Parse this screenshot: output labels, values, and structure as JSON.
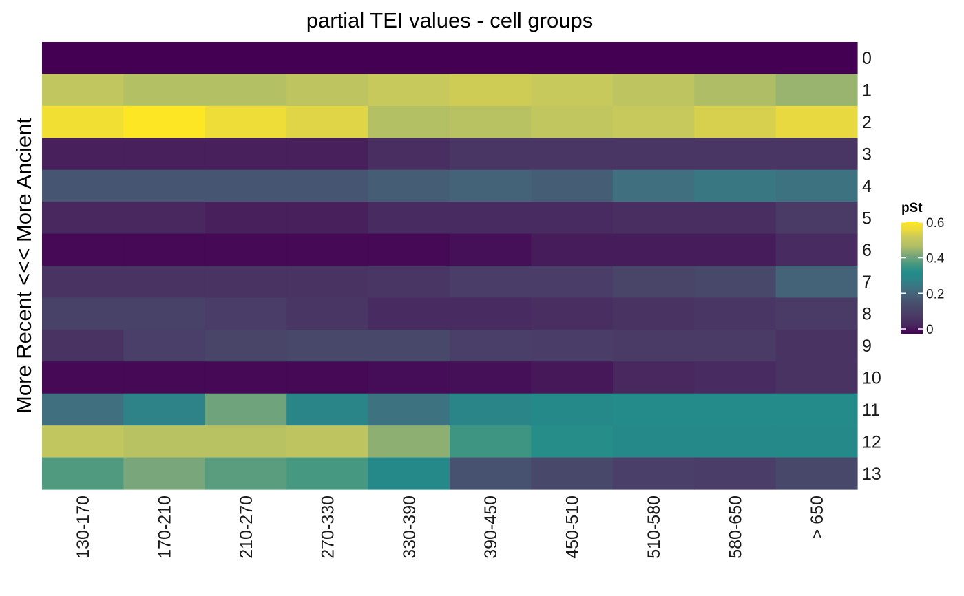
{
  "chart_data": {
    "type": "heatmap",
    "title": "partial TEI values - cell groups",
    "xlabel": "",
    "ylabel": "More Recent <<< More Ancient",
    "x_categories": [
      "130-170",
      "170-210",
      "210-270",
      "270-330",
      "330-390",
      "390-450",
      "450-510",
      "510-580",
      "580-650",
      "> 650"
    ],
    "y_categories": [
      "0",
      "1",
      "2",
      "3",
      "4",
      "5",
      "6",
      "7",
      "8",
      "9",
      "10",
      "11",
      "12",
      "13"
    ],
    "values": [
      [
        0.0,
        0.0,
        0.0,
        0.0,
        0.0,
        0.0,
        0.0,
        0.0,
        0.0,
        0.0
      ],
      [
        0.53,
        0.5,
        0.5,
        0.52,
        0.54,
        0.55,
        0.54,
        0.52,
        0.49,
        0.47
      ],
      [
        0.6,
        0.63,
        0.59,
        0.57,
        0.5,
        0.51,
        0.53,
        0.54,
        0.56,
        0.58
      ],
      [
        0.04,
        0.04,
        0.04,
        0.04,
        0.07,
        0.09,
        0.09,
        0.09,
        0.09,
        0.09
      ],
      [
        0.19,
        0.19,
        0.19,
        0.19,
        0.21,
        0.22,
        0.21,
        0.25,
        0.27,
        0.26
      ],
      [
        0.05,
        0.05,
        0.04,
        0.04,
        0.06,
        0.06,
        0.06,
        0.07,
        0.07,
        0.1
      ],
      [
        0.01,
        0.01,
        0.01,
        0.01,
        0.01,
        0.02,
        0.035,
        0.035,
        0.035,
        0.06
      ],
      [
        0.08,
        0.08,
        0.08,
        0.08,
        0.09,
        0.11,
        0.11,
        0.14,
        0.15,
        0.22
      ],
      [
        0.13,
        0.13,
        0.11,
        0.09,
        0.06,
        0.06,
        0.07,
        0.08,
        0.09,
        0.1
      ],
      [
        0.08,
        0.12,
        0.14,
        0.15,
        0.15,
        0.12,
        0.11,
        0.1,
        0.1,
        0.08
      ],
      [
        0.01,
        0.01,
        0.01,
        0.01,
        0.015,
        0.02,
        0.03,
        0.05,
        0.06,
        0.08
      ],
      [
        0.25,
        0.3,
        0.43,
        0.31,
        0.26,
        0.31,
        0.33,
        0.34,
        0.34,
        0.34
      ],
      [
        0.53,
        0.51,
        0.51,
        0.52,
        0.46,
        0.38,
        0.35,
        0.33,
        0.33,
        0.33
      ],
      [
        0.4,
        0.44,
        0.41,
        0.39,
        0.33,
        0.18,
        0.15,
        0.12,
        0.11,
        0.15
      ]
    ],
    "colorbar": {
      "title": "pSt",
      "ticks": [
        0,
        0.2,
        0.4,
        0.6
      ],
      "tick_labels": [
        "0",
        "0.2",
        "0.4",
        "0.6"
      ],
      "range": [
        0,
        0.63
      ],
      "palette": "viridis"
    },
    "legend_position": "right",
    "grid": false
  }
}
